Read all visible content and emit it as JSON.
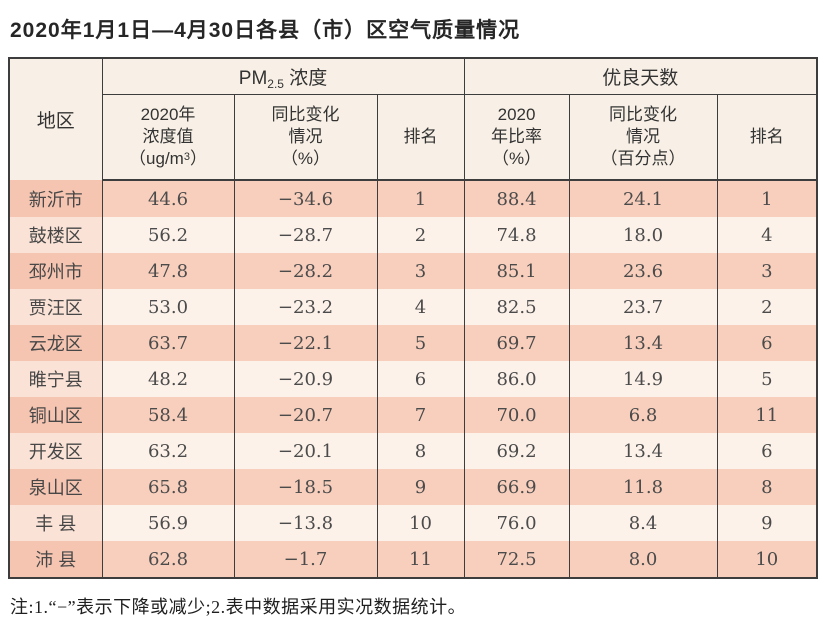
{
  "title": "2020年1月1日—4月30日各县（市）区空气质量情况",
  "table": {
    "region_header": "地区",
    "groups": [
      {
        "prefix": "PM",
        "sub": "2.5",
        "suffix": " 浓度"
      },
      {
        "label": "优良天数"
      }
    ],
    "subheaders": [
      {
        "lines": "2020年\n浓度值",
        "unit_pre": "（ug/m",
        "unit_sup": "3",
        "unit_post": "）"
      },
      {
        "lines": "同比变化\n情况\n（%）"
      },
      {
        "lines": "排名"
      },
      {
        "lines": "2020\n年比率\n（%）"
      },
      {
        "lines": "同比变化\n情况\n（百分点）"
      },
      {
        "lines": "排名"
      }
    ],
    "row_keys": [
      "region",
      "pm_value",
      "pm_change",
      "pm_rank",
      "rate",
      "rate_change",
      "rank"
    ],
    "rows": [
      {
        "region": "新沂市",
        "pm_value": "44.6",
        "pm_change": "−34.6",
        "pm_rank": "1",
        "rate": "88.4",
        "rate_change": "24.1",
        "rank": "1"
      },
      {
        "region": "鼓楼区",
        "pm_value": "56.2",
        "pm_change": "−28.7",
        "pm_rank": "2",
        "rate": "74.8",
        "rate_change": "18.0",
        "rank": "4"
      },
      {
        "region": "邳州市",
        "pm_value": "47.8",
        "pm_change": "−28.2",
        "pm_rank": "3",
        "rate": "85.1",
        "rate_change": "23.6",
        "rank": "3"
      },
      {
        "region": "贾汪区",
        "pm_value": "53.0",
        "pm_change": "−23.2",
        "pm_rank": "4",
        "rate": "82.5",
        "rate_change": "23.7",
        "rank": "2"
      },
      {
        "region": "云龙区",
        "pm_value": "63.7",
        "pm_change": "−22.1",
        "pm_rank": "5",
        "rate": "69.7",
        "rate_change": "13.4",
        "rank": "6"
      },
      {
        "region": "睢宁县",
        "pm_value": "48.2",
        "pm_change": "−20.9",
        "pm_rank": "6",
        "rate": "86.0",
        "rate_change": "14.9",
        "rank": "5"
      },
      {
        "region": "铜山区",
        "pm_value": "58.4",
        "pm_change": "−20.7",
        "pm_rank": "7",
        "rate": "70.0",
        "rate_change": "6.8",
        "rank": "11"
      },
      {
        "region": "开发区",
        "pm_value": "63.2",
        "pm_change": "−20.1",
        "pm_rank": "8",
        "rate": "69.2",
        "rate_change": "13.4",
        "rank": "6"
      },
      {
        "region": "泉山区",
        "pm_value": "65.8",
        "pm_change": "−18.5",
        "pm_rank": "9",
        "rate": "66.9",
        "rate_change": "11.8",
        "rank": "8"
      },
      {
        "region": "丰 县",
        "pm_value": "56.9",
        "pm_change": "−13.8",
        "pm_rank": "10",
        "rate": "76.0",
        "rate_change": "8.4",
        "rank": "9"
      },
      {
        "region": "沛 县",
        "pm_value": "62.8",
        "pm_change": "−1.7",
        "pm_rank": "11",
        "rate": "72.5",
        "rate_change": "8.0",
        "rank": "10"
      }
    ]
  },
  "note": "注:1.“−”表示下降或减少;2.表中数据采用实况数据统计。",
  "colors": {
    "border": "#3d3d3d",
    "header_bg": "#f8f0e6",
    "row_odd": "#f8cfbd",
    "row_odd_region": "#f5c5b1",
    "row_even": "#fdf2ea",
    "row_even_region": "#fae2d6",
    "body_text": "#4b4b4b"
  }
}
